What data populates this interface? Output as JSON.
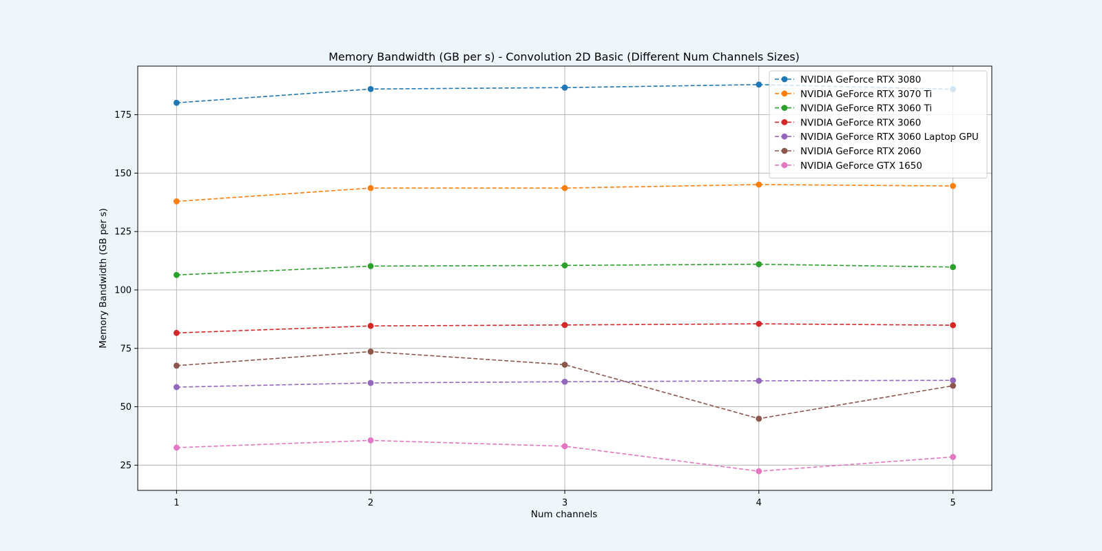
{
  "chart_data": {
    "type": "line",
    "title": "Memory Bandwidth (GB per s) - Convolution 2D Basic (Different Num Channels Sizes)",
    "xlabel": "Num channels",
    "ylabel": "Memory Bandwidth (GB per s)",
    "x": [
      1,
      2,
      3,
      4,
      5
    ],
    "xlim": [
      0.8,
      5.2
    ],
    "ylim": [
      14.2,
      195.8
    ],
    "yticks": [
      25,
      50,
      75,
      100,
      125,
      150,
      175
    ],
    "grid": true,
    "legend_position": "top-right",
    "line_style": "dashed",
    "marker": "circle",
    "series": [
      {
        "name": "NVIDIA GeForce RTX 3080",
        "color": "#1f77b4",
        "values": [
          180.1,
          186.0,
          186.6,
          187.9,
          185.9
        ]
      },
      {
        "name": "NVIDIA GeForce RTX 3070 Ti",
        "color": "#ff7f0e",
        "values": [
          137.9,
          143.6,
          143.6,
          145.1,
          144.5
        ]
      },
      {
        "name": "NVIDIA GeForce RTX 3060 Ti",
        "color": "#2ca02c",
        "values": [
          106.4,
          110.2,
          110.5,
          111.0,
          109.8
        ]
      },
      {
        "name": "NVIDIA GeForce RTX 3060",
        "color": "#d62728",
        "values": [
          81.6,
          84.6,
          85.0,
          85.5,
          84.9
        ]
      },
      {
        "name": "NVIDIA GeForce RTX 3060 Laptop GPU",
        "color": "#9467bd",
        "values": [
          58.4,
          60.2,
          60.7,
          61.1,
          61.3
        ]
      },
      {
        "name": "NVIDIA GeForce RTX 2060",
        "color": "#8c564b",
        "values": [
          67.6,
          73.6,
          68.0,
          44.9,
          59.0
        ]
      },
      {
        "name": "NVIDIA GeForce GTX 1650",
        "color": "#e377c2",
        "values": [
          32.5,
          35.6,
          33.1,
          22.4,
          28.5
        ]
      }
    ]
  }
}
